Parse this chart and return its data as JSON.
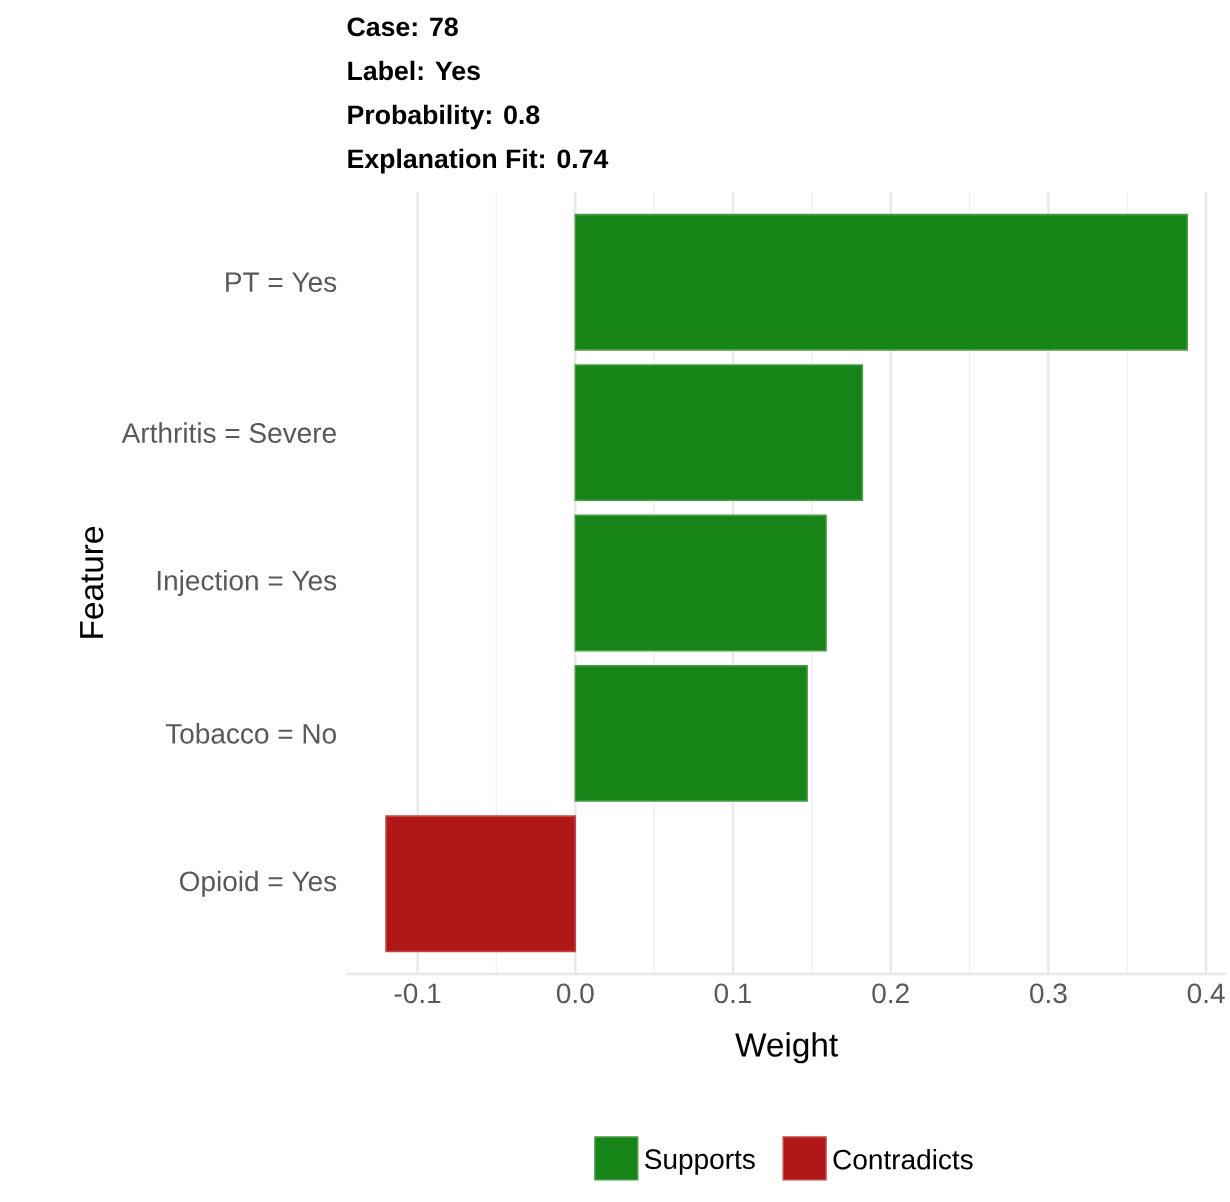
{
  "chart_data": {
    "type": "bar",
    "orientation": "horizontal",
    "title": "Case: 78",
    "annotations": [
      "Label: Yes",
      "Probability: 0.8",
      "Explanation Fit: 0.74"
    ],
    "categories": [
      "PT = Yes",
      "Arthritis = Severe",
      "Injection = Yes",
      "Tobacco = No",
      "Opioid = Yes"
    ],
    "series": [
      {
        "name": "Supports",
        "color": "#178417",
        "values": [
          0.388,
          0.182,
          0.159,
          0.147,
          null
        ]
      },
      {
        "name": "Contradicts",
        "color": "#b01717",
        "values": [
          null,
          null,
          null,
          null,
          -0.12
        ]
      }
    ],
    "xlabel": "Weight",
    "ylabel": "Feature",
    "xlim": [
      -0.145,
      0.413
    ],
    "xticks": [
      -0.1,
      {
        "value": 0,
        "label": "0.0"
      },
      0.1,
      0.2,
      0.3,
      0.4
    ],
    "grid": "x",
    "legend": "bottom"
  }
}
